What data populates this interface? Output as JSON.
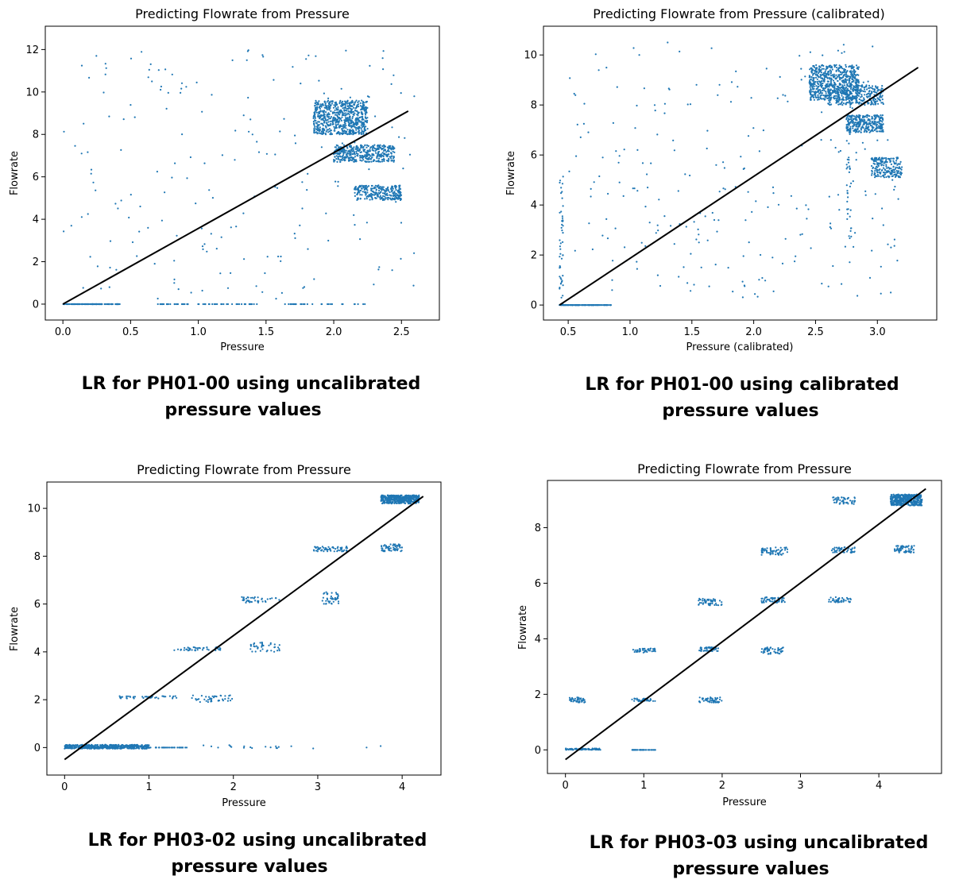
{
  "style": {
    "point_color": "#1f77b4",
    "fit_color": "#000000"
  },
  "chart_data": [
    {
      "type": "scatter",
      "title": "Predicting Flowrate from Pressure",
      "xlabel": "Pressure",
      "ylabel": "Flowrate",
      "xlim": [
        -0.13,
        2.78
      ],
      "ylim": [
        -0.75,
        13.1
      ],
      "xticks": [
        "0.0",
        "0.5",
        "1.0",
        "1.5",
        "2.0",
        "2.5"
      ],
      "yticks": [
        "0",
        "2",
        "4",
        "6",
        "8",
        "10",
        "12"
      ],
      "fit_line": [
        [
          0.0,
          0.0
        ],
        [
          2.55,
          9.1
        ]
      ],
      "clusters": [
        {
          "x": [
            1.85,
            2.25
          ],
          "y": [
            8.0,
            9.6
          ],
          "n": 700
        },
        {
          "x": [
            2.0,
            2.45
          ],
          "y": [
            6.7,
            7.5
          ],
          "n": 400
        },
        {
          "x": [
            2.15,
            2.5
          ],
          "y": [
            4.9,
            5.6
          ],
          "n": 250
        },
        {
          "x": [
            0.0,
            0.42
          ],
          "y": [
            0.0,
            0.0
          ],
          "n": 150
        },
        {
          "x": [
            0.7,
            1.45
          ],
          "y": [
            0.0,
            0.0
          ],
          "n": 60
        },
        {
          "x": [
            1.6,
            2.25
          ],
          "y": [
            0.0,
            0.0
          ],
          "n": 30
        },
        {
          "x": [
            0.0,
            2.6
          ],
          "y": [
            0.2,
            12.0
          ],
          "n": 200
        }
      ],
      "caption": [
        "LR  for PH01-00 using uncalibrated",
        "pressure values"
      ]
    },
    {
      "type": "scatter",
      "title": "Predicting Flowrate from Pressure (calibrated)",
      "xlabel": "Pressure (calibrated)",
      "ylabel": "Flowrate",
      "xlim": [
        0.3,
        3.48
      ],
      "ylim": [
        -0.6,
        11.15
      ],
      "xticks": [
        "0.5",
        "1.0",
        "1.5",
        "2.0",
        "2.5",
        "3.0"
      ],
      "yticks": [
        "0",
        "2",
        "4",
        "6",
        "8",
        "10"
      ],
      "fit_line": [
        [
          0.43,
          0.0
        ],
        [
          3.33,
          9.5
        ]
      ],
      "clusters": [
        {
          "x": [
            2.45,
            2.85
          ],
          "y": [
            8.2,
            9.6
          ],
          "n": 600
        },
        {
          "x": [
            2.6,
            3.05
          ],
          "y": [
            8.0,
            8.8
          ],
          "n": 300
        },
        {
          "x": [
            2.75,
            3.05
          ],
          "y": [
            6.9,
            7.6
          ],
          "n": 300
        },
        {
          "x": [
            2.95,
            3.2
          ],
          "y": [
            5.1,
            5.9
          ],
          "n": 200
        },
        {
          "x": [
            0.43,
            0.85
          ],
          "y": [
            0.0,
            0.0
          ],
          "n": 120
        },
        {
          "x": [
            0.43,
            0.46
          ],
          "y": [
            0.0,
            5.3
          ],
          "n": 50
        },
        {
          "x": [
            2.75,
            2.79
          ],
          "y": [
            2.5,
            8.5
          ],
          "n": 40
        },
        {
          "x": [
            0.5,
            3.2
          ],
          "y": [
            0.2,
            10.5
          ],
          "n": 250
        }
      ],
      "caption": [
        "LR  for PH01-00 using   calibrated",
        "pressure values"
      ]
    },
    {
      "type": "scatter",
      "title": "Predicting Flowrate from Pressure",
      "xlabel": "Pressure",
      "ylabel": "Flowrate",
      "xlim": [
        -0.21,
        4.46
      ],
      "ylim": [
        -1.15,
        11.1
      ],
      "xticks": [
        "0",
        "1",
        "2",
        "3",
        "4"
      ],
      "yticks": [
        "0",
        "2",
        "4",
        "6",
        "8",
        "10"
      ],
      "fit_line": [
        [
          0.0,
          -0.5
        ],
        [
          4.25,
          10.5
        ]
      ],
      "clusters": [
        {
          "x": [
            3.75,
            4.2
          ],
          "y": [
            10.2,
            10.55
          ],
          "n": 400
        },
        {
          "x": [
            3.75,
            4.0
          ],
          "y": [
            8.2,
            8.5
          ],
          "n": 60
        },
        {
          "x": [
            2.95,
            3.35
          ],
          "y": [
            8.2,
            8.4
          ],
          "n": 60
        },
        {
          "x": [
            3.05,
            3.25
          ],
          "y": [
            6.0,
            6.5
          ],
          "n": 40
        },
        {
          "x": [
            2.1,
            2.55
          ],
          "y": [
            6.05,
            6.3
          ],
          "n": 40
        },
        {
          "x": [
            2.2,
            2.55
          ],
          "y": [
            4.0,
            4.4
          ],
          "n": 40
        },
        {
          "x": [
            1.3,
            1.85
          ],
          "y": [
            4.05,
            4.2
          ],
          "n": 40
        },
        {
          "x": [
            1.5,
            2.0
          ],
          "y": [
            1.9,
            2.2
          ],
          "n": 40
        },
        {
          "x": [
            0.65,
            1.35
          ],
          "y": [
            2.05,
            2.15
          ],
          "n": 40
        },
        {
          "x": [
            0.0,
            1.0
          ],
          "y": [
            -0.05,
            0.12
          ],
          "n": 500
        },
        {
          "x": [
            1.0,
            1.45
          ],
          "y": [
            0.0,
            0.0
          ],
          "n": 30
        },
        {
          "x": [
            1.6,
            3.95
          ],
          "y": [
            -0.05,
            0.1
          ],
          "n": 20
        }
      ],
      "caption": [
        "LR  for PH03-02 using uncalibrated",
        "pressure values"
      ]
    },
    {
      "type": "scatter",
      "title": "Predicting Flowrate from Pressure",
      "xlabel": "Pressure",
      "ylabel": "Flowrate",
      "xlim": [
        -0.23,
        4.8
      ],
      "ylim": [
        -0.85,
        9.7
      ],
      "xticks": [
        "0",
        "1",
        "2",
        "3",
        "4"
      ],
      "yticks": [
        "0",
        "2",
        "4",
        "6",
        "8"
      ],
      "fit_line": [
        [
          0.0,
          -0.35
        ],
        [
          4.6,
          9.4
        ]
      ],
      "clusters": [
        {
          "x": [
            4.15,
            4.55
          ],
          "y": [
            8.8,
            9.2
          ],
          "n": 400
        },
        {
          "x": [
            4.2,
            4.45
          ],
          "y": [
            7.1,
            7.35
          ],
          "n": 60
        },
        {
          "x": [
            3.4,
            3.7
          ],
          "y": [
            8.85,
            9.1
          ],
          "n": 50
        },
        {
          "x": [
            3.4,
            3.7
          ],
          "y": [
            7.1,
            7.3
          ],
          "n": 50
        },
        {
          "x": [
            3.35,
            3.65
          ],
          "y": [
            5.3,
            5.5
          ],
          "n": 40
        },
        {
          "x": [
            2.5,
            2.85
          ],
          "y": [
            7.0,
            7.3
          ],
          "n": 60
        },
        {
          "x": [
            2.5,
            2.8
          ],
          "y": [
            5.3,
            5.5
          ],
          "n": 50
        },
        {
          "x": [
            2.5,
            2.8
          ],
          "y": [
            3.45,
            3.7
          ],
          "n": 50
        },
        {
          "x": [
            1.7,
            2.0
          ],
          "y": [
            5.2,
            5.45
          ],
          "n": 50
        },
        {
          "x": [
            1.7,
            1.95
          ],
          "y": [
            3.55,
            3.7
          ],
          "n": 50
        },
        {
          "x": [
            1.7,
            2.0
          ],
          "y": [
            1.7,
            1.9
          ],
          "n": 50
        },
        {
          "x": [
            0.85,
            1.15
          ],
          "y": [
            3.5,
            3.65
          ],
          "n": 40
        },
        {
          "x": [
            0.85,
            1.15
          ],
          "y": [
            1.75,
            1.85
          ],
          "n": 40
        },
        {
          "x": [
            0.05,
            0.25
          ],
          "y": [
            1.7,
            1.9
          ],
          "n": 40
        },
        {
          "x": [
            0.0,
            0.45
          ],
          "y": [
            0.0,
            0.05
          ],
          "n": 80
        },
        {
          "x": [
            0.85,
            1.15
          ],
          "y": [
            0.0,
            0.0
          ],
          "n": 40
        }
      ],
      "caption": [
        "LR  for PH03-03 using uncalibrated",
        "pressure values"
      ]
    }
  ]
}
